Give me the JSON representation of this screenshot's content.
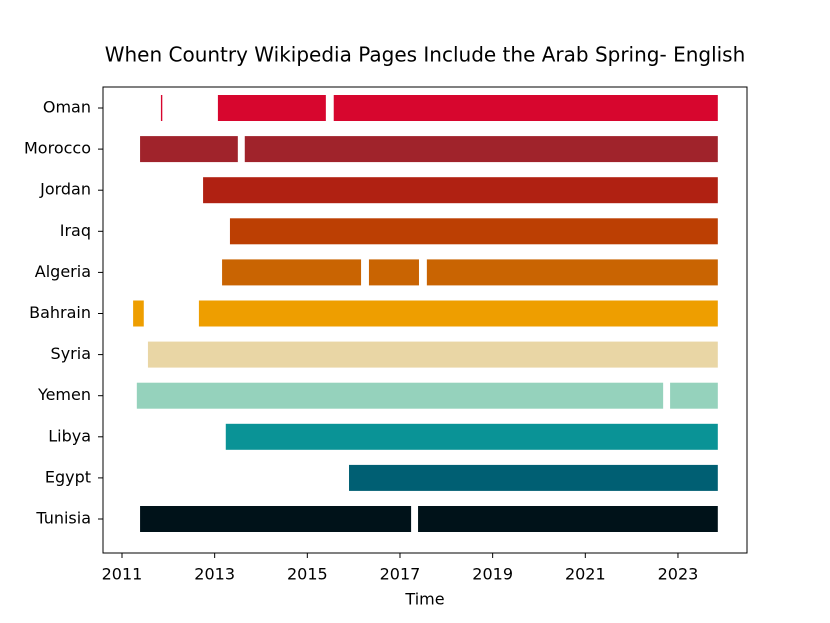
{
  "chart_data": {
    "type": "timeline",
    "title": "When Country Wikipedia Pages Include the Arab Spring- English",
    "x_label": "Time",
    "xlim": [
      2010.59,
      2024.49
    ],
    "xticks": [
      2011,
      2013,
      2015,
      2017,
      2019,
      2021,
      2023
    ],
    "series": [
      {
        "name": "Oman",
        "color": "#d7062e",
        "segments": [
          [
            2011.84,
            2011.87
          ],
          [
            2013.07,
            2015.4
          ],
          [
            2015.57,
            2023.86
          ]
        ]
      },
      {
        "name": "Morocco",
        "color": "#a0232b",
        "segments": [
          [
            2011.39,
            2013.5
          ],
          [
            2013.65,
            2023.86
          ]
        ]
      },
      {
        "name": "Jordan",
        "color": "#b02112",
        "segments": [
          [
            2012.75,
            2023.86
          ]
        ]
      },
      {
        "name": "Iraq",
        "color": "#bc3f03",
        "segments": [
          [
            2013.33,
            2023.86
          ]
        ]
      },
      {
        "name": "Algeria",
        "color": "#c96402",
        "segments": [
          [
            2013.16,
            2016.16
          ],
          [
            2016.33,
            2017.41
          ],
          [
            2017.58,
            2023.86
          ]
        ]
      },
      {
        "name": "Bahrain",
        "color": "#ee9e00",
        "segments": [
          [
            2011.24,
            2011.47
          ],
          [
            2012.66,
            2023.86
          ]
        ]
      },
      {
        "name": "Syria",
        "color": "#e9d6a5",
        "segments": [
          [
            2011.56,
            2023.86
          ]
        ]
      },
      {
        "name": "Yemen",
        "color": "#95d2bc",
        "segments": [
          [
            2011.32,
            2022.68
          ],
          [
            2022.83,
            2023.86
          ]
        ]
      },
      {
        "name": "Libya",
        "color": "#0a9396",
        "segments": [
          [
            2013.24,
            2023.86
          ]
        ]
      },
      {
        "name": "Egypt",
        "color": "#005f73",
        "segments": [
          [
            2015.9,
            2023.86
          ]
        ]
      },
      {
        "name": "Tunisia",
        "color": "#001219",
        "segments": [
          [
            2011.39,
            2017.24
          ],
          [
            2017.39,
            2023.86
          ]
        ]
      }
    ]
  }
}
